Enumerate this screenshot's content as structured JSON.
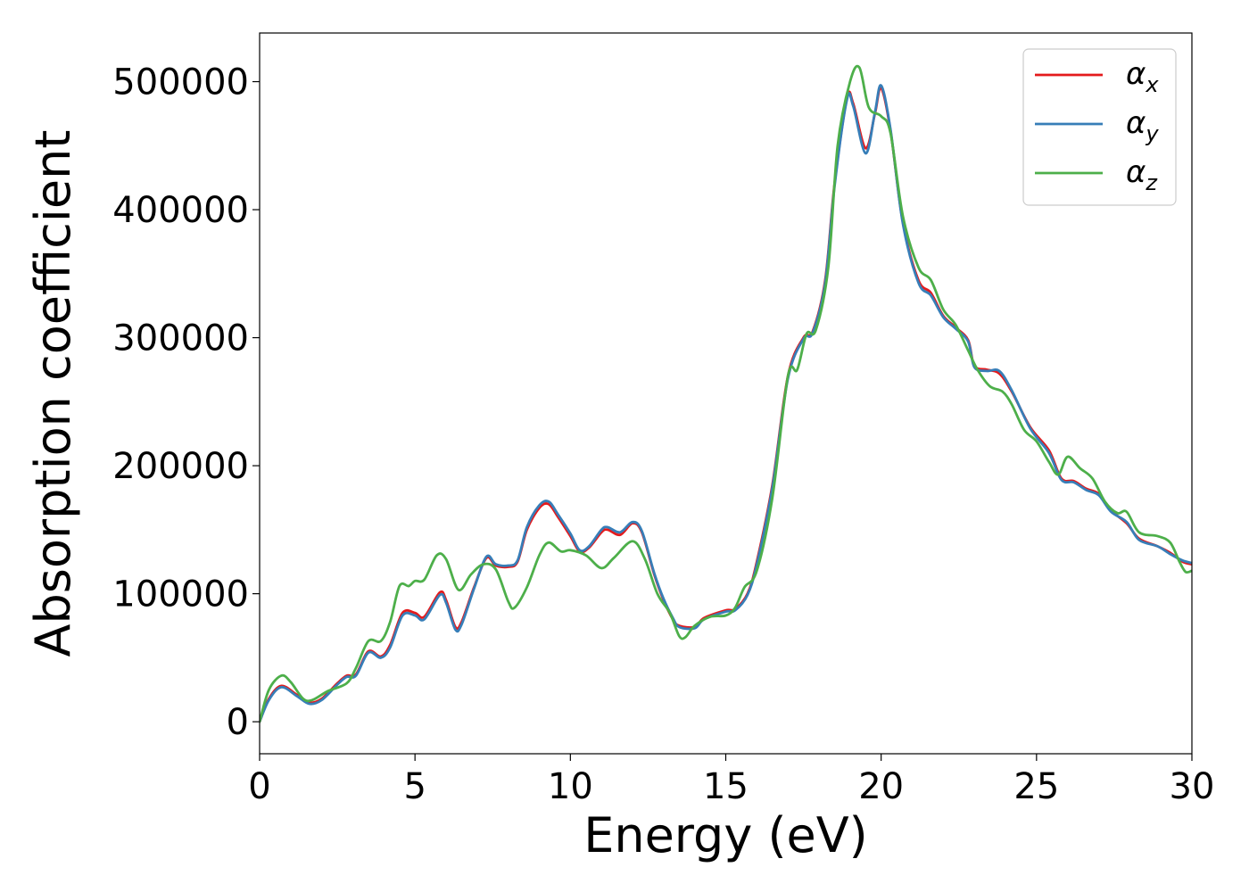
{
  "chart_data": {
    "type": "line",
    "title": "",
    "xlabel": "Energy (eV)",
    "ylabel": "Absorption coefficient",
    "xlim": [
      0,
      30
    ],
    "ylim": [
      -25000,
      538000
    ],
    "x_ticks": [
      0,
      5,
      10,
      15,
      20,
      25,
      30
    ],
    "y_ticks": [
      0,
      100000,
      200000,
      300000,
      400000,
      500000
    ],
    "x_tick_labels": [
      "0",
      "5",
      "10",
      "15",
      "20",
      "25",
      "30"
    ],
    "y_tick_labels": [
      "0",
      "100000",
      "200000",
      "300000",
      "400000",
      "500000"
    ],
    "grid": false,
    "legend_position": "top-right",
    "series": [
      {
        "name": "αx",
        "symbol": "α",
        "subscript": "x",
        "color": "#e41a1c",
        "points": [
          [
            0,
            0
          ],
          [
            0.3,
            18000
          ],
          [
            0.7,
            28000
          ],
          [
            1.2,
            21000
          ],
          [
            1.6,
            15000
          ],
          [
            2.0,
            18000
          ],
          [
            2.5,
            30000
          ],
          [
            2.8,
            36000
          ],
          [
            3.1,
            37000
          ],
          [
            3.5,
            55000
          ],
          [
            3.9,
            51000
          ],
          [
            4.2,
            60000
          ],
          [
            4.6,
            85000
          ],
          [
            5.0,
            85000
          ],
          [
            5.3,
            82000
          ],
          [
            5.8,
            101000
          ],
          [
            6.0,
            95000
          ],
          [
            6.3,
            74000
          ],
          [
            6.5,
            78000
          ],
          [
            6.9,
            105000
          ],
          [
            7.3,
            128000
          ],
          [
            7.6,
            122000
          ],
          [
            8.0,
            121000
          ],
          [
            8.3,
            125000
          ],
          [
            8.6,
            150000
          ],
          [
            9.0,
            167000
          ],
          [
            9.3,
            170000
          ],
          [
            9.6,
            160000
          ],
          [
            10.0,
            145000
          ],
          [
            10.3,
            133000
          ],
          [
            10.6,
            136000
          ],
          [
            11.0,
            148000
          ],
          [
            11.2,
            150000
          ],
          [
            11.6,
            146000
          ],
          [
            12.0,
            155000
          ],
          [
            12.3,
            148000
          ],
          [
            12.7,
            115000
          ],
          [
            13.0,
            95000
          ],
          [
            13.3,
            80000
          ],
          [
            13.5,
            75000
          ],
          [
            14.0,
            74000
          ],
          [
            14.3,
            81000
          ],
          [
            15.0,
            87000
          ],
          [
            15.3,
            88000
          ],
          [
            15.7,
            100000
          ],
          [
            16.0,
            125000
          ],
          [
            16.5,
            185000
          ],
          [
            17.0,
            270000
          ],
          [
            17.5,
            300000
          ],
          [
            17.8,
            305000
          ],
          [
            18.2,
            345000
          ],
          [
            18.5,
            420000
          ],
          [
            18.9,
            487000
          ],
          [
            19.1,
            483000
          ],
          [
            19.5,
            448000
          ],
          [
            19.8,
            475000
          ],
          [
            20.0,
            495000
          ],
          [
            20.3,
            462000
          ],
          [
            20.7,
            390000
          ],
          [
            21.2,
            345000
          ],
          [
            21.6,
            335000
          ],
          [
            22.0,
            317000
          ],
          [
            22.4,
            308000
          ],
          [
            22.8,
            298000
          ],
          [
            23.0,
            278000
          ],
          [
            23.4,
            275000
          ],
          [
            23.8,
            272000
          ],
          [
            24.2,
            258000
          ],
          [
            24.8,
            230000
          ],
          [
            25.4,
            212000
          ],
          [
            25.8,
            190000
          ],
          [
            26.2,
            188000
          ],
          [
            26.6,
            182000
          ],
          [
            27.0,
            178000
          ],
          [
            27.4,
            165000
          ],
          [
            27.9,
            155000
          ],
          [
            28.3,
            143000
          ],
          [
            28.9,
            137000
          ],
          [
            29.3,
            132000
          ],
          [
            29.7,
            125000
          ],
          [
            30,
            123000
          ]
        ]
      },
      {
        "name": "αy",
        "symbol": "α",
        "subscript": "y",
        "color": "#377eb8",
        "points": [
          [
            0,
            0
          ],
          [
            0.3,
            17000
          ],
          [
            0.7,
            27000
          ],
          [
            1.2,
            20000
          ],
          [
            1.6,
            14000
          ],
          [
            2.0,
            17000
          ],
          [
            2.5,
            29000
          ],
          [
            2.8,
            35000
          ],
          [
            3.1,
            36000
          ],
          [
            3.5,
            54000
          ],
          [
            3.9,
            50000
          ],
          [
            4.2,
            58000
          ],
          [
            4.6,
            83000
          ],
          [
            5.0,
            83000
          ],
          [
            5.3,
            80000
          ],
          [
            5.8,
            99000
          ],
          [
            6.0,
            93000
          ],
          [
            6.3,
            72000
          ],
          [
            6.5,
            76000
          ],
          [
            6.9,
            104000
          ],
          [
            7.3,
            129000
          ],
          [
            7.6,
            123000
          ],
          [
            8.0,
            122000
          ],
          [
            8.3,
            126000
          ],
          [
            8.6,
            152000
          ],
          [
            9.0,
            169000
          ],
          [
            9.3,
            172000
          ],
          [
            9.6,
            162000
          ],
          [
            10.0,
            147000
          ],
          [
            10.3,
            134000
          ],
          [
            10.6,
            137000
          ],
          [
            11.0,
            150000
          ],
          [
            11.2,
            152000
          ],
          [
            11.6,
            148000
          ],
          [
            12.0,
            156000
          ],
          [
            12.3,
            149000
          ],
          [
            12.7,
            116000
          ],
          [
            13.0,
            96000
          ],
          [
            13.3,
            81000
          ],
          [
            13.5,
            74000
          ],
          [
            14.0,
            73000
          ],
          [
            14.3,
            80000
          ],
          [
            15.0,
            86000
          ],
          [
            15.3,
            87000
          ],
          [
            15.7,
            99000
          ],
          [
            16.0,
            123000
          ],
          [
            16.5,
            183000
          ],
          [
            17.0,
            268000
          ],
          [
            17.5,
            299000
          ],
          [
            17.8,
            304000
          ],
          [
            18.2,
            343000
          ],
          [
            18.5,
            418000
          ],
          [
            18.9,
            486000
          ],
          [
            19.1,
            481000
          ],
          [
            19.5,
            444000
          ],
          [
            19.8,
            476000
          ],
          [
            20.0,
            497000
          ],
          [
            20.3,
            463000
          ],
          [
            20.7,
            389000
          ],
          [
            21.2,
            343000
          ],
          [
            21.6,
            333000
          ],
          [
            22.0,
            316000
          ],
          [
            22.4,
            307000
          ],
          [
            22.8,
            297000
          ],
          [
            23.0,
            277000
          ],
          [
            23.4,
            274000
          ],
          [
            23.8,
            274000
          ],
          [
            24.2,
            259000
          ],
          [
            24.8,
            229000
          ],
          [
            25.4,
            210000
          ],
          [
            25.8,
            189000
          ],
          [
            26.2,
            187000
          ],
          [
            26.6,
            181000
          ],
          [
            27.0,
            177000
          ],
          [
            27.4,
            164000
          ],
          [
            27.9,
            156000
          ],
          [
            28.3,
            142000
          ],
          [
            28.9,
            137000
          ],
          [
            29.3,
            131000
          ],
          [
            29.7,
            126000
          ],
          [
            30,
            124000
          ]
        ]
      },
      {
        "name": "αz",
        "symbol": "α",
        "subscript": "z",
        "color": "#4daf4a",
        "points": [
          [
            0,
            0
          ],
          [
            0.3,
            25000
          ],
          [
            0.7,
            36000
          ],
          [
            1.0,
            31000
          ],
          [
            1.4,
            18000
          ],
          [
            1.7,
            17000
          ],
          [
            2.2,
            24000
          ],
          [
            2.8,
            30000
          ],
          [
            3.1,
            42000
          ],
          [
            3.5,
            63000
          ],
          [
            3.9,
            63000
          ],
          [
            4.2,
            78000
          ],
          [
            4.5,
            106000
          ],
          [
            4.8,
            106000
          ],
          [
            5.0,
            110000
          ],
          [
            5.3,
            111000
          ],
          [
            5.7,
            130000
          ],
          [
            6.0,
            127000
          ],
          [
            6.4,
            103000
          ],
          [
            6.8,
            115000
          ],
          [
            7.2,
            123000
          ],
          [
            7.6,
            119000
          ],
          [
            8.0,
            94000
          ],
          [
            8.2,
            89000
          ],
          [
            8.6,
            105000
          ],
          [
            9.0,
            130000
          ],
          [
            9.3,
            140000
          ],
          [
            9.7,
            133000
          ],
          [
            10.0,
            134000
          ],
          [
            10.5,
            130000
          ],
          [
            11.0,
            120000
          ],
          [
            11.4,
            128000
          ],
          [
            12.0,
            141000
          ],
          [
            12.4,
            127000
          ],
          [
            12.8,
            100000
          ],
          [
            13.2,
            85000
          ],
          [
            13.5,
            67000
          ],
          [
            13.7,
            66000
          ],
          [
            14.0,
            75000
          ],
          [
            14.5,
            82000
          ],
          [
            15.0,
            83000
          ],
          [
            15.3,
            89000
          ],
          [
            15.6,
            105000
          ],
          [
            16.0,
            118000
          ],
          [
            16.5,
            175000
          ],
          [
            17.0,
            270000
          ],
          [
            17.3,
            275000
          ],
          [
            17.6,
            303000
          ],
          [
            17.9,
            306000
          ],
          [
            18.3,
            355000
          ],
          [
            18.6,
            450000
          ],
          [
            19.0,
            500000
          ],
          [
            19.3,
            511000
          ],
          [
            19.6,
            480000
          ],
          [
            20.0,
            473000
          ],
          [
            20.3,
            460000
          ],
          [
            20.7,
            395000
          ],
          [
            21.2,
            355000
          ],
          [
            21.6,
            345000
          ],
          [
            22.0,
            322000
          ],
          [
            22.4,
            310000
          ],
          [
            22.8,
            290000
          ],
          [
            23.1,
            275000
          ],
          [
            23.5,
            262000
          ],
          [
            23.9,
            258000
          ],
          [
            24.2,
            248000
          ],
          [
            24.6,
            228000
          ],
          [
            25.0,
            219000
          ],
          [
            25.4,
            203000
          ],
          [
            25.7,
            193000
          ],
          [
            26.0,
            207000
          ],
          [
            26.4,
            198000
          ],
          [
            26.8,
            190000
          ],
          [
            27.2,
            172000
          ],
          [
            27.6,
            163000
          ],
          [
            27.9,
            164000
          ],
          [
            28.3,
            148000
          ],
          [
            28.9,
            145000
          ],
          [
            29.3,
            140000
          ],
          [
            29.6,
            125000
          ],
          [
            29.8,
            117000
          ],
          [
            30,
            118000
          ]
        ]
      }
    ]
  }
}
